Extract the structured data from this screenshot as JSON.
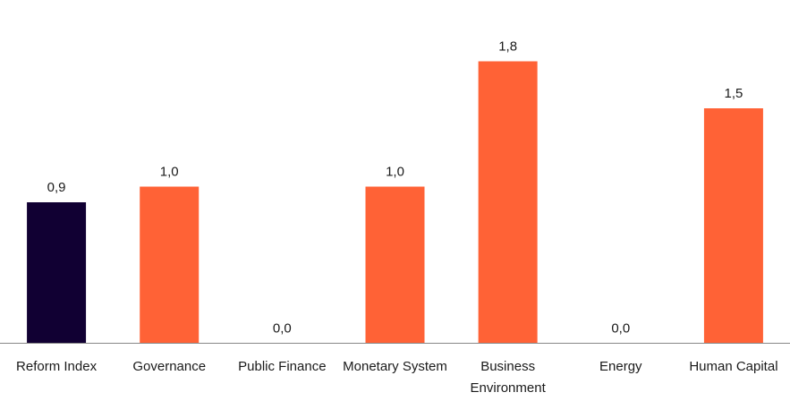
{
  "chart_data": {
    "type": "bar",
    "categories": [
      "Reform Index",
      "Governance",
      "Public Finance",
      "Monetary System",
      "Business Environment",
      "Energy",
      "Human Capital"
    ],
    "category_lines": [
      [
        "Reform Index"
      ],
      [
        "Governance"
      ],
      [
        "Public Finance"
      ],
      [
        "Monetary System"
      ],
      [
        "Business",
        "Environment"
      ],
      [
        "Energy"
      ],
      [
        "Human Capital"
      ]
    ],
    "values": [
      0.9,
      1.0,
      0.0,
      1.0,
      1.8,
      0.0,
      1.5
    ],
    "value_labels": [
      "0,9",
      "1,0",
      "0,0",
      "1,0",
      "1,8",
      "0,0",
      "1,5"
    ],
    "bar_colors": [
      "#110033",
      "#ff6236",
      "#ff6236",
      "#ff6236",
      "#ff6236",
      "#ff6236",
      "#ff6236"
    ],
    "ylim": [
      0,
      2.0
    ],
    "grid": false,
    "legend": "none",
    "title": "",
    "xlabel": "",
    "ylabel": ""
  }
}
